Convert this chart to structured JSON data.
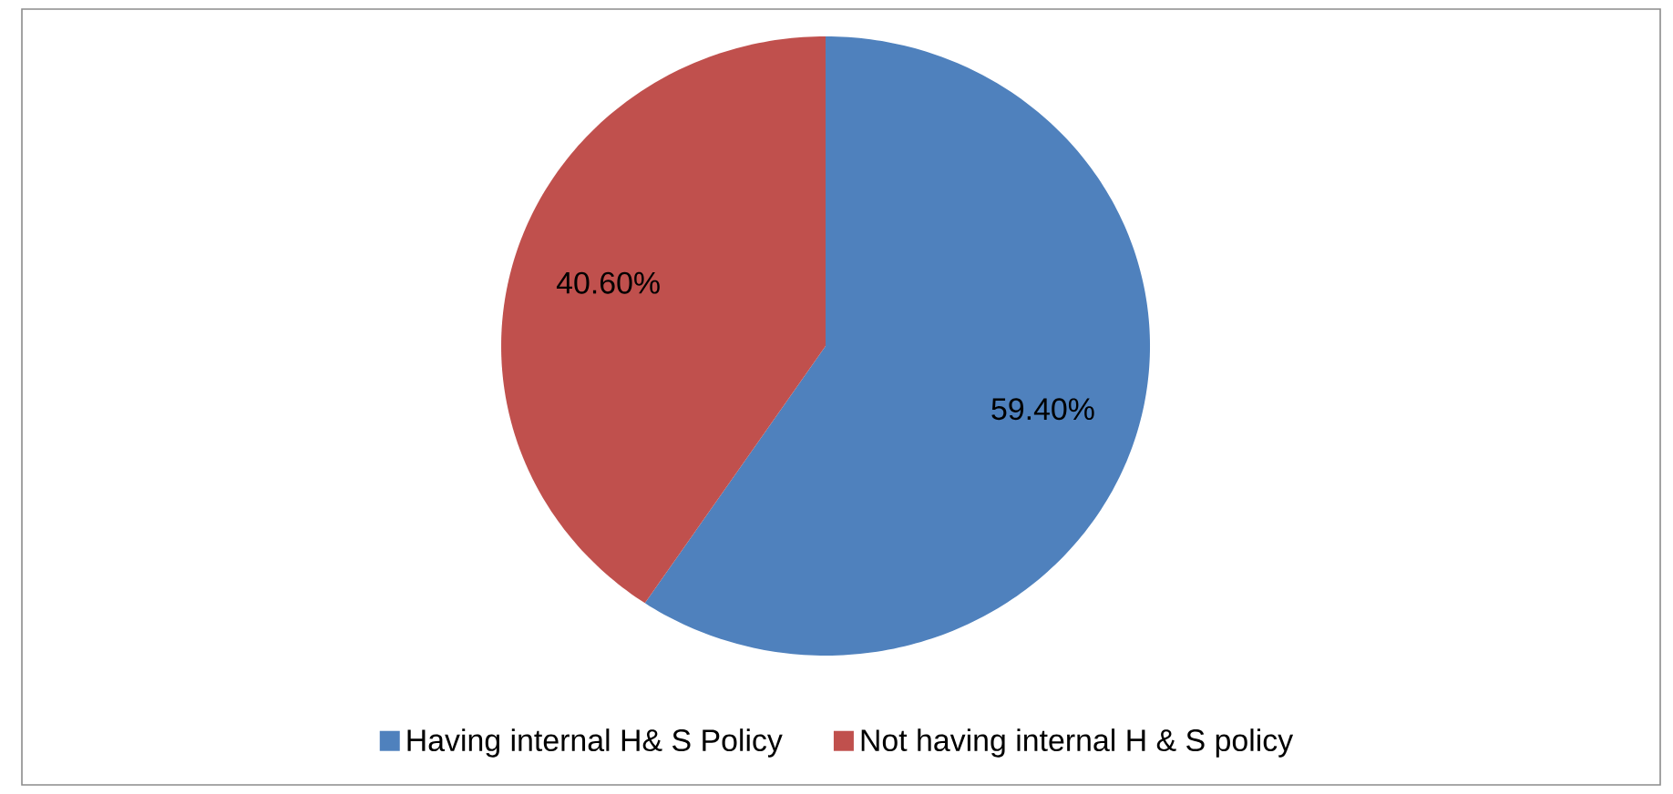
{
  "chart_data": {
    "type": "pie",
    "categories": [
      "Having internal H& S Policy",
      "Not having internal H & S policy"
    ],
    "values": [
      59.4,
      40.6
    ],
    "colors": [
      "#4f81bd",
      "#c0504d"
    ],
    "value_labels": [
      "59.40%",
      "40.60%"
    ],
    "legend": "bottom"
  }
}
